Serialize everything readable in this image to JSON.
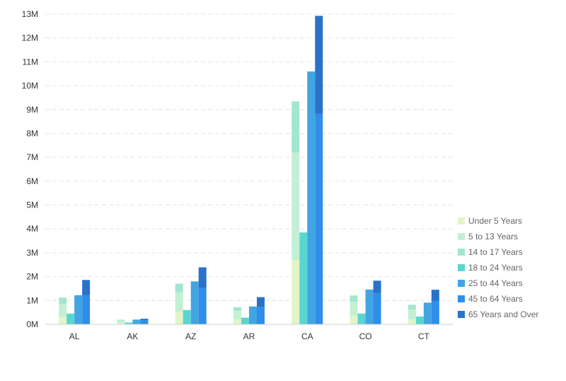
{
  "chart_data": {
    "type": "bar",
    "categories": [
      "AL",
      "AK",
      "AZ",
      "AR",
      "CA",
      "CO",
      "CT"
    ],
    "ylim": [
      0,
      13000000
    ],
    "yticks": [
      {
        "value": 0,
        "label": "0M"
      },
      {
        "value": 1000000,
        "label": "1M"
      },
      {
        "value": 2000000,
        "label": "2M"
      },
      {
        "value": 3000000,
        "label": "3M"
      },
      {
        "value": 4000000,
        "label": "4M"
      },
      {
        "value": 5000000,
        "label": "5M"
      },
      {
        "value": 6000000,
        "label": "6M"
      },
      {
        "value": 7000000,
        "label": "7M"
      },
      {
        "value": 8000000,
        "label": "8M"
      },
      {
        "value": 9000000,
        "label": "9M"
      },
      {
        "value": 10000000,
        "label": "10M"
      },
      {
        "value": 11000000,
        "label": "11M"
      },
      {
        "value": 12000000,
        "label": "12M"
      },
      {
        "value": 13000000,
        "label": "13M"
      }
    ],
    "grid": true,
    "legend_position": "right",
    "stacks": [
      {
        "series": [
          0,
          1,
          2
        ]
      },
      {
        "series": [
          3
        ]
      },
      {
        "series": [
          4
        ]
      },
      {
        "series": [
          5,
          6
        ]
      }
    ],
    "series": [
      {
        "name": "Under 5 Years",
        "color": "#e2f5c8",
        "values": [
          310000,
          52000,
          515000,
          200000,
          2700000,
          350000,
          210000
        ]
      },
      {
        "name": "5 to 13 Years",
        "color": "#c3f0d3",
        "values": [
          550000,
          100000,
          840000,
          370000,
          4500000,
          590000,
          410000
        ]
      },
      {
        "name": "14 to 17 Years",
        "color": "#a3e6d0",
        "values": [
          260000,
          40000,
          350000,
          150000,
          2150000,
          270000,
          200000
        ]
      },
      {
        "name": "18 to 24 Years",
        "color": "#5ad6d2",
        "values": [
          450000,
          76000,
          600000,
          280000,
          3850000,
          450000,
          330000
        ]
      },
      {
        "name": "25 to 44 Years",
        "color": "#42a5e3",
        "values": [
          1220000,
          200000,
          1800000,
          750000,
          10600000,
          1460000,
          910000
        ]
      },
      {
        "name": "45 to 64 Years",
        "color": "#2f8fe8",
        "values": [
          1220000,
          180000,
          1520000,
          740000,
          8820000,
          1320000,
          980000
        ]
      },
      {
        "name": "65 Years and Over",
        "color": "#2a72c9",
        "values": [
          640000,
          55000,
          870000,
          400000,
          4110000,
          510000,
          470000
        ]
      }
    ]
  }
}
